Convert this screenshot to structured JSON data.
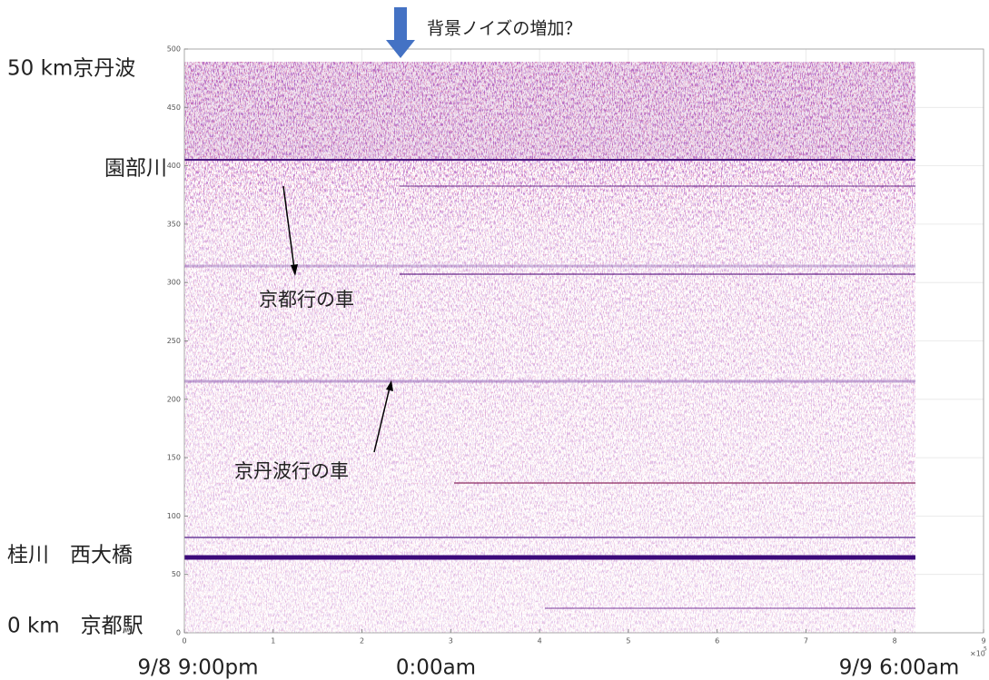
{
  "chart_data": {
    "type": "waterfall",
    "annotation_top": "背景ノイズの増加？",
    "place_labels": [
      "50 km京丹波",
      "園部川",
      "桂川　西大橋",
      "0 km　京都駅"
    ],
    "annotations": [
      "京都行の車",
      "京丹波行の車"
    ],
    "time_labels": [
      "9/8 9:00pm",
      "0:00am",
      "9/9 6:00am"
    ],
    "x_multiplier": "×10",
    "x_multiplier_exponent": "5",
    "xlim": [
      0,
      9
    ],
    "xticks": [
      0,
      1,
      2,
      3,
      4,
      5,
      6,
      7,
      8,
      9
    ],
    "ylim": [
      0,
      500
    ],
    "yticks": [
      0,
      50,
      100,
      150,
      200,
      250,
      300,
      350,
      400,
      450,
      500
    ],
    "grid": true
  }
}
